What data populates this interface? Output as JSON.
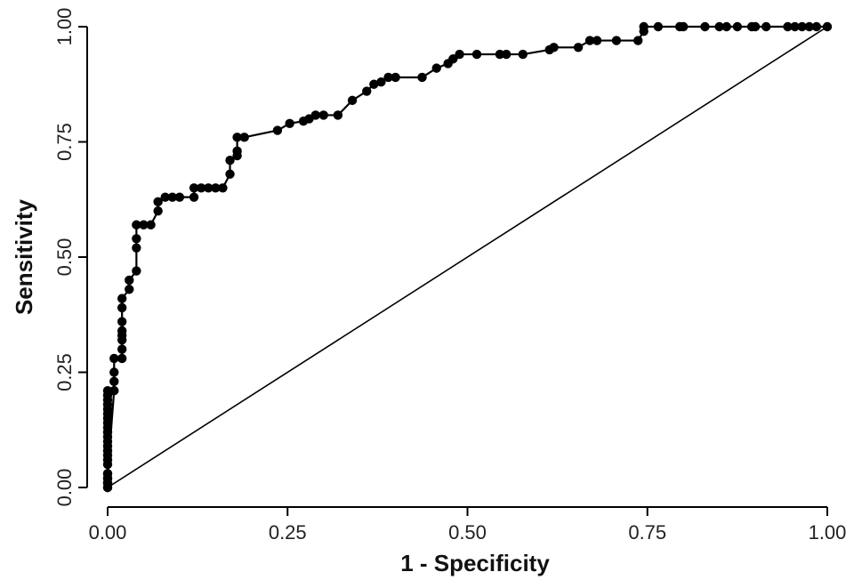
{
  "chart_data": {
    "type": "line",
    "xlabel": "1 - Specificity",
    "ylabel": "Sensitivity",
    "xlim": [
      0,
      1
    ],
    "ylim": [
      0,
      1
    ],
    "x_ticks": [
      "0.00",
      "0.25",
      "0.50",
      "0.75",
      "1.00"
    ],
    "y_ticks": [
      "0.00",
      "0.25",
      "0.50",
      "0.75",
      "1.00"
    ],
    "grid": false,
    "legend": "none",
    "series": [
      {
        "x": [
          0.0,
          0.0,
          0.0,
          0.0,
          0.0,
          0.0,
          0.0,
          0.0,
          0.0,
          0.0,
          0.0,
          0.0,
          0.0,
          0.0,
          0.0,
          0.0,
          0.0,
          0.0,
          0.0,
          0.0,
          0.0,
          0.0,
          0.0,
          0.0,
          0.0,
          0.009,
          0.009,
          0.009,
          0.009,
          0.02,
          0.02,
          0.02,
          0.02,
          0.02,
          0.02,
          0.02,
          0.02,
          0.03,
          0.03,
          0.04,
          0.04,
          0.04,
          0.04,
          0.05,
          0.06,
          0.07,
          0.07,
          0.08,
          0.09,
          0.1,
          0.12,
          0.12,
          0.13,
          0.14,
          0.15,
          0.16,
          0.17,
          0.17,
          0.18,
          0.18,
          0.18,
          0.19,
          0.236,
          0.253,
          0.272,
          0.28,
          0.289,
          0.3,
          0.32,
          0.34,
          0.36,
          0.37,
          0.38,
          0.39,
          0.4,
          0.437,
          0.457,
          0.473,
          0.48,
          0.489,
          0.513,
          0.545,
          0.554,
          0.577,
          0.614,
          0.62,
          0.654,
          0.67,
          0.68,
          0.707,
          0.737,
          0.745,
          0.745,
          0.765,
          0.795,
          0.8,
          0.83,
          0.85,
          0.86,
          0.875,
          0.895,
          0.9,
          0.915,
          0.945,
          0.955,
          0.965,
          0.975,
          0.985,
          1.0
        ],
        "y": [
          0.0,
          0.01,
          0.02,
          0.03,
          0.05,
          0.06,
          0.07,
          0.08,
          0.09,
          0.1,
          0.11,
          0.12,
          0.13,
          0.14,
          0.15,
          0.16,
          0.17,
          0.18,
          0.19,
          0.2,
          0.21,
          0.0,
          0.01,
          0.02,
          0.03,
          0.21,
          0.23,
          0.25,
          0.28,
          0.28,
          0.3,
          0.32,
          0.33,
          0.34,
          0.36,
          0.39,
          0.41,
          0.43,
          0.45,
          0.47,
          0.52,
          0.54,
          0.57,
          0.57,
          0.57,
          0.6,
          0.62,
          0.63,
          0.63,
          0.63,
          0.63,
          0.65,
          0.65,
          0.65,
          0.65,
          0.65,
          0.68,
          0.71,
          0.72,
          0.73,
          0.76,
          0.76,
          0.775,
          0.79,
          0.795,
          0.8,
          0.808,
          0.808,
          0.808,
          0.84,
          0.86,
          0.875,
          0.88,
          0.89,
          0.89,
          0.89,
          0.91,
          0.92,
          0.93,
          0.94,
          0.94,
          0.94,
          0.94,
          0.94,
          0.95,
          0.955,
          0.955,
          0.97,
          0.97,
          0.97,
          0.97,
          0.99,
          1.0,
          1.0,
          1.0,
          1.0,
          1.0,
          1.0,
          1.0,
          1.0,
          1.0,
          1.0,
          1.0,
          1.0,
          1.0,
          1.0,
          1.0,
          1.0,
          1.0
        ]
      }
    ],
    "reference_line": {
      "x": [
        0,
        1
      ],
      "y": [
        0,
        1
      ]
    },
    "colors": {
      "line": "#000000",
      "marker": "#000000",
      "axis": "#000000"
    }
  }
}
